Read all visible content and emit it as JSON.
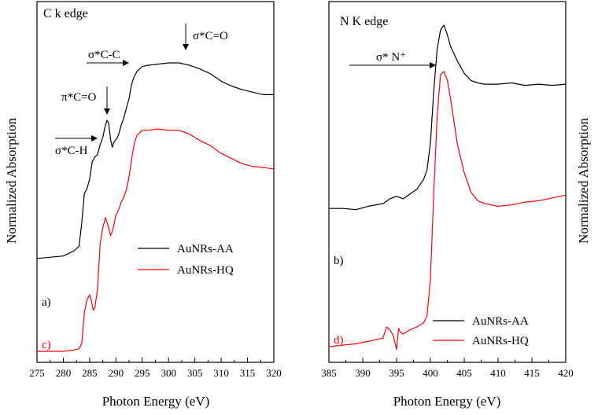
{
  "colors": {
    "black_series": "#000000",
    "red_series": "#ff0000",
    "axis": "#000000"
  },
  "chart_data": [
    {
      "type": "line",
      "title": "C k edge",
      "xlabel": "Photon Energy (eV)",
      "ylabel": "Normalized Absorption",
      "xlim": [
        275,
        320
      ],
      "ylim": [
        0,
        1
      ],
      "xticks": [
        "275",
        "280",
        "285",
        "290",
        "295",
        "300",
        "305",
        "310",
        "315",
        "320"
      ],
      "annotations": [
        "σ*C=O",
        "σ*C-C",
        "π*C=O",
        "σ*C-H"
      ],
      "curve_labels": [
        "a)",
        "c)"
      ],
      "legend": [
        "AuNRs-AA",
        "AuNRs-HQ"
      ],
      "series": [
        {
          "name": "AuNRs-AA",
          "color": "#000000",
          "x": [
            275,
            280,
            281,
            282,
            283,
            283.5,
            284,
            284.5,
            285,
            285.5,
            286,
            286.5,
            287,
            287.5,
            288,
            288.3,
            288.6,
            289,
            289.3,
            289.6,
            290,
            290.5,
            291,
            291.5,
            292,
            292.5,
            293,
            293.5,
            294,
            295,
            296,
            298,
            300,
            302,
            303,
            304,
            306,
            308,
            310,
            312,
            314,
            316,
            318,
            320
          ],
          "y": [
            0.155,
            0.165,
            0.175,
            0.185,
            0.205,
            0.3,
            0.42,
            0.44,
            0.48,
            0.55,
            0.57,
            0.58,
            0.62,
            0.65,
            0.7,
            0.72,
            0.71,
            0.64,
            0.61,
            0.63,
            0.64,
            0.66,
            0.7,
            0.73,
            0.77,
            0.81,
            0.87,
            0.9,
            0.92,
            0.94,
            0.945,
            0.95,
            0.955,
            0.955,
            0.95,
            0.945,
            0.93,
            0.91,
            0.88,
            0.86,
            0.845,
            0.835,
            0.825,
            0.825
          ]
        },
        {
          "name": "AuNRs-HQ",
          "color": "#ff0000",
          "x": [
            275,
            280,
            282,
            283,
            283.5,
            284,
            284.5,
            285,
            285.3,
            285.7,
            286,
            286.5,
            287,
            287.5,
            288,
            288.5,
            289,
            289.5,
            290,
            290.5,
            291,
            291.5,
            292,
            292.5,
            293,
            293.5,
            294,
            295,
            296,
            298,
            300,
            302,
            304,
            306,
            308,
            310,
            312,
            314,
            316,
            318,
            320
          ],
          "y": [
            0.0,
            0.0,
            0.005,
            0.01,
            0.03,
            0.15,
            0.2,
            0.22,
            0.2,
            0.16,
            0.17,
            0.24,
            0.42,
            0.48,
            0.52,
            0.49,
            0.45,
            0.48,
            0.53,
            0.55,
            0.58,
            0.6,
            0.63,
            0.68,
            0.75,
            0.81,
            0.84,
            0.86,
            0.86,
            0.865,
            0.86,
            0.86,
            0.845,
            0.82,
            0.8,
            0.77,
            0.75,
            0.73,
            0.72,
            0.715,
            0.71
          ]
        }
      ]
    },
    {
      "type": "line",
      "title": "N K edge",
      "xlabel": "Photon Energy (eV)",
      "ylabel": "Normalized Absorption",
      "xlim": [
        385,
        420
      ],
      "ylim": [
        0,
        1
      ],
      "xticks": [
        "385",
        "390",
        "395",
        "400",
        "405",
        "410",
        "415",
        "420"
      ],
      "annotations": [
        "σ* N⁺"
      ],
      "curve_labels": [
        "b)",
        "d)"
      ],
      "legend": [
        "AuNRs-AA",
        "AuNRs-HQ"
      ],
      "series": [
        {
          "name": "AuNRs-AA",
          "color": "#000000",
          "x": [
            385,
            387,
            389,
            391,
            393,
            394,
            395,
            396,
            397,
            398,
            399,
            399.5,
            400,
            400.5,
            401,
            401.5,
            402,
            402.5,
            403,
            404,
            405,
            406,
            407,
            408,
            410,
            412,
            414,
            416,
            418,
            420
          ],
          "y": [
            0.26,
            0.26,
            0.255,
            0.27,
            0.28,
            0.3,
            0.31,
            0.3,
            0.32,
            0.34,
            0.38,
            0.42,
            0.53,
            0.75,
            0.92,
            1.0,
            1.02,
            0.98,
            0.93,
            0.87,
            0.82,
            0.79,
            0.78,
            0.775,
            0.775,
            0.78,
            0.77,
            0.775,
            0.77,
            0.775
          ]
        },
        {
          "name": "AuNRs-HQ",
          "color": "#ff0000",
          "x": [
            385,
            387,
            389,
            391,
            392,
            393,
            393.5,
            394,
            394.5,
            395,
            395.3,
            395.6,
            396,
            397,
            398,
            399,
            399.5,
            400,
            400.5,
            401,
            401.5,
            402,
            402.5,
            403,
            404,
            405,
            406,
            407,
            408,
            410,
            412,
            414,
            416,
            418,
            420
          ],
          "y": [
            0.0,
            0.005,
            0.01,
            0.02,
            0.025,
            0.03,
            0.07,
            0.06,
            0.04,
            -0.01,
            0.065,
            0.05,
            0.045,
            0.06,
            0.07,
            0.085,
            0.11,
            0.24,
            0.55,
            0.82,
            0.97,
            0.98,
            0.95,
            0.88,
            0.72,
            0.62,
            0.55,
            0.52,
            0.51,
            0.5,
            0.505,
            0.515,
            0.52,
            0.53,
            0.54
          ]
        }
      ]
    }
  ]
}
